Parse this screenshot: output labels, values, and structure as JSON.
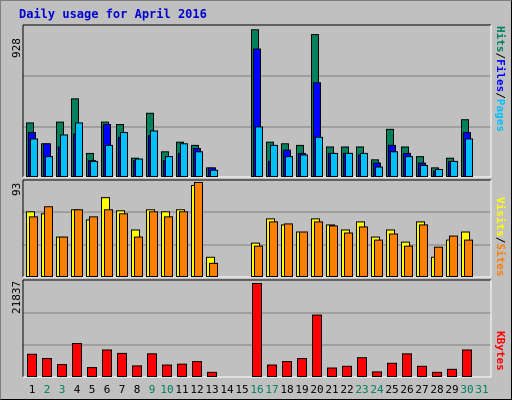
{
  "title": "Daily usage for April 2016",
  "colors": {
    "hits": "#00805c",
    "files": "#0000ff",
    "pages": "#00c0ff",
    "visits": "#ffff00",
    "sites": "#ff8000",
    "kbytes": "#ff0000",
    "weekend_label": "#00805c",
    "weekday_label": "#000000"
  },
  "right_labels": {
    "hits_files_pages": [
      "Pages",
      "/",
      "Files",
      "/",
      "Hits"
    ],
    "visits_sites": [
      "Sites",
      "/",
      "Visits"
    ],
    "kbytes": "KBytes"
  },
  "chart_data": [
    {
      "type": "bar",
      "title": "Daily usage for April 2016",
      "ymax_label": "928",
      "ylim": [
        0,
        928
      ],
      "categories": [
        "1",
        "2",
        "3",
        "4",
        "5",
        "6",
        "7",
        "8",
        "9",
        "10",
        "11",
        "12",
        "13",
        "14",
        "15",
        "16",
        "17",
        "18",
        "19",
        "20",
        "21",
        "22",
        "23",
        "24",
        "25",
        "26",
        "27",
        "28",
        "29",
        "30",
        "31"
      ],
      "series": [
        {
          "name": "Hits",
          "values": [
            340,
            210,
            345,
            490,
            150,
            345,
            330,
            120,
            400,
            160,
            220,
            200,
            60,
            0,
            0,
            920,
            220,
            210,
            200,
            890,
            190,
            190,
            190,
            110,
            300,
            190,
            130,
            60,
            120,
            360,
            0
          ]
        },
        {
          "name": "Files",
          "values": [
            280,
            210,
            190,
            270,
            105,
            330,
            250,
            105,
            260,
            105,
            150,
            180,
            60,
            0,
            0,
            800,
            100,
            170,
            150,
            590,
            150,
            150,
            140,
            90,
            200,
            150,
            90,
            40,
            100,
            280,
            0
          ]
        },
        {
          "name": "Pages",
          "values": [
            240,
            130,
            265,
            340,
            100,
            200,
            280,
            115,
            290,
            130,
            210,
            160,
            45,
            0,
            0,
            315,
            200,
            130,
            140,
            250,
            150,
            150,
            150,
            65,
            160,
            130,
            75,
            50,
            100,
            240,
            0
          ]
        }
      ]
    },
    {
      "type": "bar",
      "ymax_label": "93",
      "ylim": [
        0,
        93
      ],
      "categories": [
        "1",
        "2",
        "3",
        "4",
        "5",
        "6",
        "7",
        "8",
        "9",
        "10",
        "11",
        "12",
        "13",
        "14",
        "15",
        "16",
        "17",
        "18",
        "19",
        "20",
        "21",
        "22",
        "23",
        "24",
        "25",
        "26",
        "27",
        "28",
        "29",
        "30",
        "31"
      ],
      "series": [
        {
          "name": "Visits",
          "values": [
            65,
            63,
            40,
            67,
            57,
            79,
            66,
            47,
            67,
            65,
            67,
            91,
            20,
            0,
            0,
            34,
            58,
            52,
            45,
            58,
            52,
            47,
            55,
            40,
            47,
            35,
            55,
            20,
            37,
            45,
            0
          ],
          "dummy": null
        },
        {
          "name": "Sites",
          "values": [
            60,
            70,
            40,
            67,
            60,
            67,
            63,
            40,
            65,
            60,
            65,
            94,
            14,
            0,
            0,
            31,
            55,
            53,
            45,
            55,
            51,
            44,
            50,
            37,
            43,
            31,
            52,
            30,
            41,
            37,
            0
          ]
        }
      ]
    },
    {
      "type": "bar",
      "ymax_label": "21837",
      "ylim": [
        0,
        21837
      ],
      "categories": [
        "1",
        "2",
        "3",
        "4",
        "5",
        "6",
        "7",
        "8",
        "9",
        "10",
        "11",
        "12",
        "13",
        "14",
        "15",
        "16",
        "17",
        "18",
        "19",
        "20",
        "21",
        "22",
        "23",
        "24",
        "25",
        "26",
        "27",
        "28",
        "29",
        "30",
        "31"
      ],
      "series": [
        {
          "name": "KBytes",
          "values": [
            5400,
            4400,
            3000,
            7900,
            2300,
            6400,
            5600,
            2700,
            5500,
            2900,
            3100,
            3700,
            1200,
            0,
            0,
            21837,
            2900,
            3700,
            4400,
            14500,
            2200,
            2600,
            4600,
            1300,
            3300,
            5500,
            2600,
            1200,
            1900,
            6400,
            0
          ]
        }
      ]
    }
  ]
}
